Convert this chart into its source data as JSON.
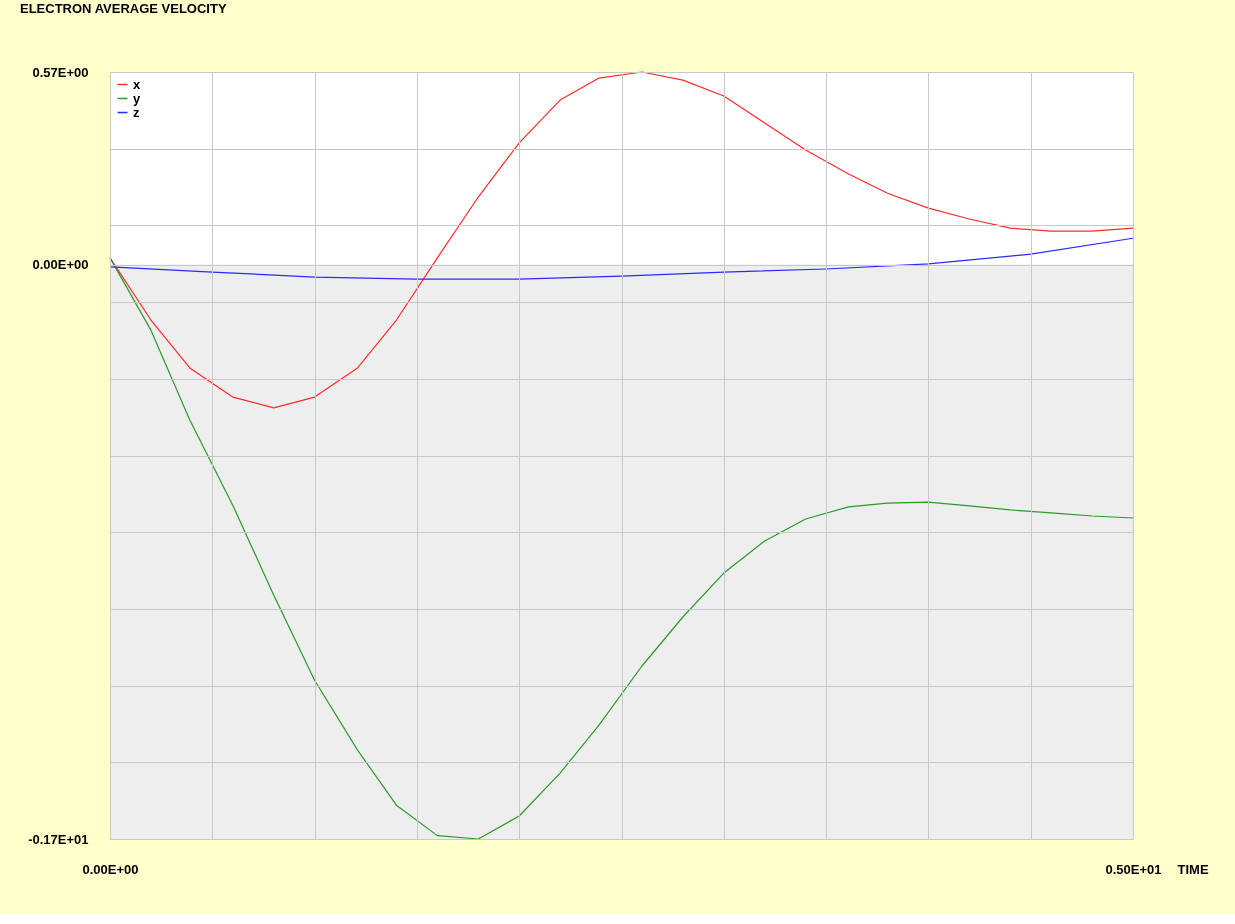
{
  "chart_data": {
    "type": "line",
    "title": "ELECTRON AVERAGE VELOCITY",
    "xlabel": "TIME",
    "xlim": [
      0,
      5
    ],
    "ylim": [
      -1.7,
      0.57
    ],
    "xticks": [
      {
        "value": 0,
        "label": "0.00E+00"
      },
      {
        "value": 0.5,
        "label": null
      },
      {
        "value": 1,
        "label": null
      },
      {
        "value": 1.5,
        "label": null
      },
      {
        "value": 2,
        "label": null
      },
      {
        "value": 2.5,
        "label": null
      },
      {
        "value": 3,
        "label": null
      },
      {
        "value": 3.5,
        "label": null
      },
      {
        "value": 4,
        "label": null
      },
      {
        "value": 4.5,
        "label": null
      },
      {
        "value": 5,
        "label": "0.50E+01"
      }
    ],
    "yticks": [
      {
        "value": -1.7,
        "label": "-0.17E+01"
      },
      {
        "value": -1.473,
        "label": null
      },
      {
        "value": -1.246,
        "label": null
      },
      {
        "value": -1.019,
        "label": null
      },
      {
        "value": -0.792,
        "label": null
      },
      {
        "value": -0.565,
        "label": null
      },
      {
        "value": -0.338,
        "label": null
      },
      {
        "value": -0.111,
        "label": null
      },
      {
        "value": 0,
        "label": "0.00E+00"
      },
      {
        "value": 0.116,
        "label": null
      },
      {
        "value": 0.343,
        "label": null
      },
      {
        "value": 0.57,
        "label": "0.57E+00"
      }
    ],
    "grid": true,
    "legend": "top left",
    "marker": "none",
    "line_style": "solid",
    "bands": [
      {
        "axis": "y",
        "from": -1.7,
        "to": 0,
        "color": "#eeeeee"
      }
    ],
    "series": [
      {
        "name": "x",
        "color": "#ff2a2a",
        "x": [
          0,
          0.2,
          0.39,
          0.6,
          0.8,
          1.0,
          1.21,
          1.4,
          1.6,
          1.8,
          2.0,
          2.2,
          2.39,
          2.6,
          2.8,
          3.0,
          3.2,
          3.4,
          3.61,
          3.8,
          4.0,
          4.2,
          4.4,
          4.6,
          4.8,
          5.0
        ],
        "values": [
          0.02,
          -0.164,
          -0.306,
          -0.392,
          -0.424,
          -0.392,
          -0.306,
          -0.164,
          0.02,
          0.2,
          0.36,
          0.487,
          0.552,
          0.57,
          0.546,
          0.499,
          0.419,
          0.339,
          0.268,
          0.211,
          0.167,
          0.135,
          0.108,
          0.099,
          0.099,
          0.108
        ]
      },
      {
        "name": "y",
        "color": "#2a9a2a",
        "x": [
          0,
          0.2,
          0.39,
          0.6,
          0.8,
          1.0,
          1.21,
          1.4,
          1.6,
          1.8,
          2.0,
          2.2,
          2.39,
          2.6,
          2.8,
          3.0,
          3.2,
          3.4,
          3.61,
          3.8,
          4.0,
          4.2,
          4.4,
          4.6,
          4.8,
          5.0
        ],
        "values": [
          0.02,
          -0.194,
          -0.46,
          -0.712,
          -0.978,
          -1.23,
          -1.437,
          -1.6,
          -1.69,
          -1.7,
          -1.632,
          -1.505,
          -1.363,
          -1.188,
          -1.043,
          -0.913,
          -0.818,
          -0.753,
          -0.717,
          -0.706,
          -0.703,
          -0.714,
          -0.726,
          -0.735,
          -0.744,
          -0.75
        ]
      },
      {
        "name": "z",
        "color": "#2a2aff",
        "x": [
          0,
          0.5,
          1.0,
          1.5,
          2.0,
          2.5,
          3.0,
          3.5,
          4.0,
          4.5,
          5.0
        ],
        "values": [
          -0.007,
          -0.022,
          -0.037,
          -0.043,
          -0.043,
          -0.034,
          -0.022,
          -0.013,
          0.002,
          0.031,
          0.078
        ]
      }
    ]
  }
}
